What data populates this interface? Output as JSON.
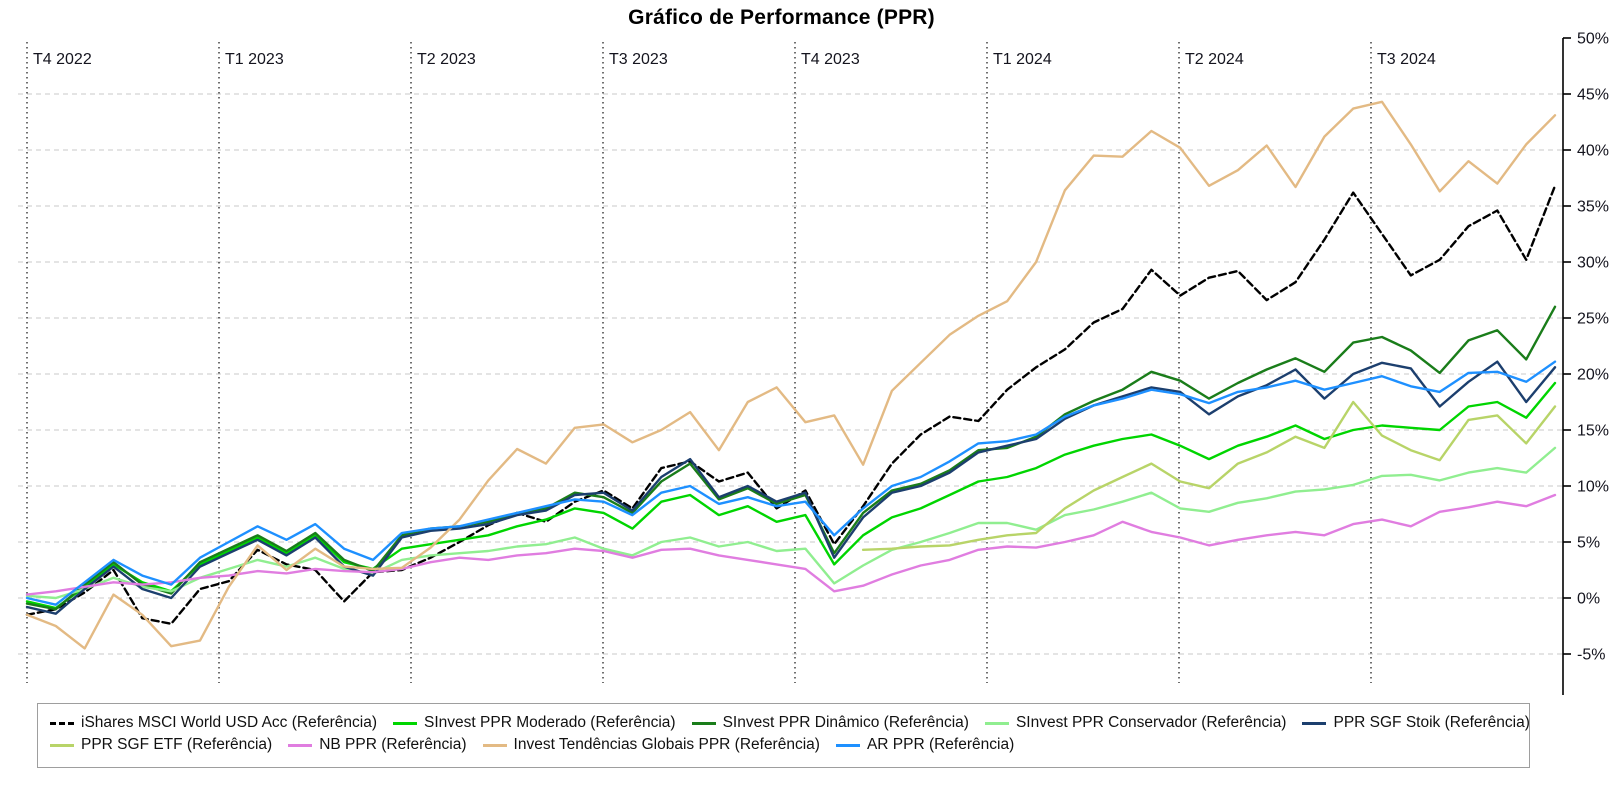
{
  "title": "Gráfico de Performance (PPR)",
  "y_axis": {
    "tick_labels": [
      "50%",
      "45%",
      "40%",
      "35%",
      "30%",
      "25%",
      "20%",
      "15%",
      "10%",
      "5%",
      "0%",
      "-5%"
    ],
    "tick_values": [
      50,
      45,
      40,
      35,
      30,
      25,
      20,
      15,
      10,
      5,
      0,
      -5
    ]
  },
  "x_axis": {
    "quarter_labels": [
      "T4 2022",
      "T1 2023",
      "T2 2023",
      "T3 2023",
      "T4 2023",
      "T1 2024",
      "T2 2024",
      "T3 2024"
    ]
  },
  "colors": {
    "grid_horizontal": "#c9c9c9",
    "grid_vertical": "#111111",
    "axis_line": "#000000",
    "label_text": "#14141e"
  },
  "legend_rows": [
    [
      0,
      1,
      2,
      3,
      4
    ],
    [
      5,
      6,
      7,
      8
    ]
  ],
  "chart_data": {
    "type": "line",
    "title": "Gráfico de Performance (PPR)",
    "x_range": "Oct 2022 – Nov 2024, sampled every 2 weeks (54 points)",
    "x_quarter_lines": [
      "T4 2022",
      "T1 2023",
      "T2 2023",
      "T3 2023",
      "T4 2023",
      "T1 2024",
      "T2 2024",
      "T3 2024"
    ],
    "ylim": [
      -5,
      50
    ],
    "y_unit": "%",
    "grid": true,
    "legend_position": "bottom",
    "series": [
      {
        "name": "iShares MSCI World USD Acc (Referência)",
        "color": "#000000",
        "dashed": true,
        "values": [
          -1.5,
          -1.0,
          0.5,
          2.5,
          -1.8,
          -2.3,
          0.8,
          1.5,
          4.3,
          3.0,
          2.5,
          -0.3,
          2.3,
          2.5,
          3.6,
          5.0,
          6.5,
          7.6,
          6.8,
          8.6,
          9.6,
          8.0,
          11.6,
          12.2,
          10.4,
          11.2,
          8.0,
          9.6,
          4.8,
          8.2,
          12.0,
          14.6,
          16.2,
          15.8,
          18.6,
          20.6,
          22.2,
          24.6,
          25.8,
          29.3,
          27.0,
          28.6,
          29.2,
          26.6,
          28.2,
          32.0,
          36.2,
          32.5,
          28.8,
          30.2,
          33.2,
          34.6,
          30.2,
          36.8
        ]
      },
      {
        "name": "SInvest PPR Moderado (Referência)",
        "color": "#00d500",
        "dashed": false,
        "values": [
          -0.3,
          -0.9,
          1.0,
          3.0,
          1.4,
          0.6,
          3.0,
          4.2,
          5.4,
          4.0,
          5.6,
          3.2,
          2.6,
          4.4,
          4.8,
          5.2,
          5.6,
          6.4,
          7.0,
          8.0,
          7.6,
          6.2,
          8.6,
          9.2,
          7.4,
          8.2,
          6.8,
          7.4,
          3.0,
          5.6,
          7.2,
          8.0,
          9.2,
          10.4,
          10.8,
          11.6,
          12.8,
          13.6,
          14.2,
          14.6,
          13.6,
          12.4,
          13.6,
          14.4,
          15.4,
          14.2,
          15.0,
          15.4,
          15.2,
          15.0,
          17.1,
          17.5,
          16.1,
          19.2
        ]
      },
      {
        "name": "SInvest PPR Dinâmico (Referência)",
        "color": "#1a7d1a",
        "dashed": false,
        "values": [
          -0.5,
          -1.0,
          1.2,
          3.2,
          1.2,
          0.4,
          3.2,
          4.4,
          5.6,
          4.2,
          5.8,
          3.4,
          2.4,
          5.6,
          6.2,
          6.4,
          6.8,
          7.6,
          8.0,
          9.4,
          9.0,
          7.6,
          10.4,
          12.0,
          8.8,
          9.8,
          8.4,
          9.2,
          4.0,
          7.6,
          9.6,
          10.2,
          11.4,
          13.2,
          13.4,
          14.4,
          16.4,
          17.6,
          18.6,
          20.2,
          19.4,
          17.8,
          19.2,
          20.4,
          21.4,
          20.2,
          22.8,
          23.3,
          22.1,
          20.1,
          23.0,
          23.9,
          21.3,
          26.0
        ]
      },
      {
        "name": "SInvest PPR Conservador (Referência)",
        "color": "#90ee90",
        "dashed": false,
        "values": [
          0.2,
          0.0,
          0.8,
          1.8,
          1.0,
          0.6,
          1.8,
          2.6,
          3.4,
          2.8,
          3.6,
          2.6,
          2.2,
          3.4,
          3.8,
          4.0,
          4.2,
          4.6,
          4.8,
          5.4,
          4.4,
          3.8,
          5.0,
          5.4,
          4.6,
          5.0,
          4.2,
          4.4,
          1.3,
          2.9,
          4.3,
          5.0,
          5.8,
          6.7,
          6.7,
          6.1,
          7.4,
          7.9,
          8.6,
          9.4,
          8.0,
          7.7,
          8.5,
          8.9,
          9.5,
          9.7,
          10.1,
          10.9,
          11.0,
          10.5,
          11.2,
          11.6,
          11.2,
          13.4
        ]
      },
      {
        "name": "PPR SGF Stoik (Referência)",
        "color": "#1c3f6e",
        "dashed": false,
        "values": [
          -0.8,
          -1.4,
          0.8,
          2.8,
          0.8,
          0.0,
          2.8,
          4.0,
          5.2,
          3.8,
          5.4,
          2.8,
          2.0,
          5.4,
          6.0,
          6.2,
          6.6,
          7.4,
          7.8,
          9.2,
          9.4,
          7.8,
          10.8,
          12.4,
          9.0,
          10.0,
          8.6,
          9.4,
          3.6,
          7.2,
          9.4,
          10.0,
          11.2,
          13.0,
          13.6,
          14.2,
          16.0,
          17.2,
          18.0,
          18.8,
          18.4,
          16.4,
          18.0,
          19.0,
          20.4,
          17.8,
          20.0,
          21.0,
          20.5,
          17.1,
          19.3,
          21.1,
          17.5,
          20.6
        ]
      },
      {
        "name": "PPR SGF ETF (Referência)",
        "color": "#b8d468",
        "dashed": false,
        "values": [
          null,
          null,
          null,
          null,
          null,
          null,
          null,
          null,
          null,
          null,
          null,
          null,
          null,
          null,
          null,
          null,
          null,
          null,
          null,
          null,
          null,
          null,
          null,
          null,
          null,
          null,
          null,
          null,
          null,
          4.3,
          4.4,
          4.6,
          4.7,
          5.2,
          5.6,
          5.8,
          8.0,
          9.6,
          10.8,
          12.0,
          10.4,
          9.8,
          12.0,
          13.0,
          14.4,
          13.4,
          17.5,
          14.5,
          13.2,
          12.3,
          15.9,
          16.3,
          13.8,
          17.1
        ]
      },
      {
        "name": "NB PPR (Referência)",
        "color": "#e07de0",
        "dashed": false,
        "values": [
          0.3,
          0.6,
          1.0,
          1.4,
          1.2,
          1.4,
          1.8,
          2.0,
          2.4,
          2.2,
          2.6,
          2.4,
          2.3,
          2.6,
          3.2,
          3.6,
          3.4,
          3.8,
          4.0,
          4.4,
          4.2,
          3.6,
          4.3,
          4.4,
          3.8,
          3.4,
          3.0,
          2.6,
          0.6,
          1.1,
          2.1,
          2.9,
          3.4,
          4.3,
          4.6,
          4.5,
          5.0,
          5.6,
          6.8,
          5.9,
          5.4,
          4.7,
          5.2,
          5.6,
          5.9,
          5.6,
          6.6,
          7.0,
          6.4,
          7.7,
          8.1,
          8.6,
          8.2,
          9.2
        ]
      },
      {
        "name": "Invest Tendências Globais PPR (Referência)",
        "color": "#e3ba84",
        "dashed": false,
        "values": [
          -1.5,
          -2.5,
          -4.5,
          0.3,
          -1.5,
          -4.3,
          -3.8,
          1.0,
          4.7,
          2.5,
          4.4,
          2.8,
          2.6,
          2.7,
          4.5,
          7.0,
          10.5,
          13.3,
          12.0,
          15.2,
          15.5,
          13.9,
          15.0,
          16.6,
          13.2,
          17.5,
          18.8,
          15.7,
          16.3,
          11.9,
          18.5,
          21.0,
          23.5,
          25.2,
          26.5,
          30.0,
          36.4,
          39.5,
          39.4,
          41.7,
          40.2,
          36.8,
          38.2,
          40.4,
          36.7,
          41.2,
          43.7,
          44.3,
          40.5,
          36.3,
          39.0,
          37.0,
          40.5,
          43.1
        ]
      },
      {
        "name": "AR PPR (Referência)",
        "color": "#1e90ff",
        "dashed": false,
        "values": [
          0.0,
          -0.6,
          1.4,
          3.4,
          2.0,
          1.2,
          3.6,
          5.0,
          6.4,
          5.2,
          6.6,
          4.4,
          3.4,
          5.8,
          6.2,
          6.4,
          7.0,
          7.6,
          8.2,
          8.8,
          8.6,
          7.4,
          9.4,
          10.0,
          8.4,
          9.0,
          8.2,
          8.6,
          5.6,
          8.0,
          10.0,
          10.8,
          12.2,
          13.8,
          14.0,
          14.6,
          16.2,
          17.2,
          17.8,
          18.6,
          18.2,
          17.4,
          18.4,
          18.8,
          19.4,
          18.6,
          19.2,
          19.8,
          18.9,
          18.4,
          20.1,
          20.2,
          19.3,
          21.1
        ]
      }
    ]
  }
}
